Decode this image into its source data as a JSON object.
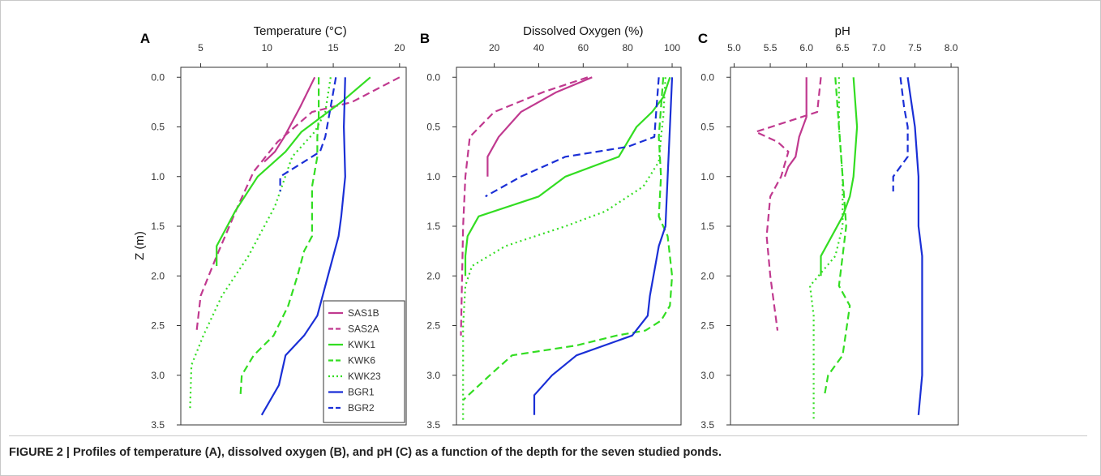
{
  "caption": "FIGURE 2 | Profiles of temperature (A), dissolved oxygen (B), and pH (C) as a function of the depth for the seven studied ponds.",
  "ylabel": "Z (m)",
  "legend": {
    "placement": "bottom-right of panel A",
    "entries": [
      {
        "name": "SAS1B",
        "color": "#c0398f",
        "dash": "solid"
      },
      {
        "name": "SAS2A",
        "color": "#c0398f",
        "dash": "dashed"
      },
      {
        "name": "KWK1",
        "color": "#33dd22",
        "dash": "solid"
      },
      {
        "name": "KWK6",
        "color": "#33dd22",
        "dash": "dashed"
      },
      {
        "name": "KWK23",
        "color": "#33dd22",
        "dash": "dotted"
      },
      {
        "name": "BGR1",
        "color": "#1a2fd6",
        "dash": "solid"
      },
      {
        "name": "BGR2",
        "color": "#1a2fd6",
        "dash": "dashed"
      }
    ]
  },
  "chart_data": [
    {
      "type": "line",
      "panel": "A",
      "xlabel": "Temperature (°C)",
      "xlim": [
        3.5,
        20.5
      ],
      "xticks": [
        5,
        10,
        15,
        20
      ],
      "ylim": [
        3.5,
        -0.1
      ],
      "yticks": [
        0.0,
        0.5,
        1.0,
        1.5,
        2.0,
        2.5,
        3.0,
        3.5
      ],
      "series": [
        {
          "name": "SAS1B",
          "x": [
            13.6,
            12.5,
            11.3,
            10.6,
            9.8
          ],
          "y": [
            0.0,
            0.3,
            0.6,
            0.75,
            0.85
          ]
        },
        {
          "name": "SAS2A",
          "x": [
            20.0,
            16.4,
            13.4,
            10.8,
            9.0,
            7.8,
            6.2,
            5.0,
            4.7
          ],
          "y": [
            0.0,
            0.25,
            0.35,
            0.65,
            0.95,
            1.3,
            1.8,
            2.2,
            2.55
          ]
        },
        {
          "name": "KWK1",
          "x": [
            17.8,
            15.6,
            12.6,
            11.4,
            9.3,
            7.6,
            6.2,
            6.2
          ],
          "y": [
            0.0,
            0.25,
            0.55,
            0.75,
            1.0,
            1.35,
            1.7,
            1.9
          ]
        },
        {
          "name": "KWK6",
          "x": [
            13.9,
            13.9,
            13.8,
            13.8,
            13.4,
            13.4,
            12.8,
            12.3,
            11.6,
            10.5,
            9.0,
            8.1,
            8.0
          ],
          "y": [
            0.0,
            0.4,
            0.6,
            0.8,
            1.1,
            1.6,
            1.75,
            2.0,
            2.3,
            2.6,
            2.8,
            3.0,
            3.2
          ]
        },
        {
          "name": "KWK23",
          "x": [
            14.8,
            14.4,
            13.6,
            11.9,
            10.6,
            8.6,
            6.6,
            5.2,
            4.3,
            4.2
          ],
          "y": [
            0.0,
            0.35,
            0.55,
            0.8,
            1.3,
            1.8,
            2.2,
            2.6,
            2.9,
            3.35
          ]
        },
        {
          "name": "BGR1",
          "x": [
            15.9,
            15.8,
            15.9,
            15.6,
            15.4,
            14.6,
            13.8,
            12.8,
            11.4,
            10.9,
            9.6
          ],
          "y": [
            0.0,
            0.5,
            1.0,
            1.4,
            1.6,
            2.0,
            2.4,
            2.6,
            2.8,
            3.1,
            3.4
          ]
        },
        {
          "name": "BGR2",
          "x": [
            15.2,
            14.8,
            14.4,
            14.0,
            12.8,
            11.6,
            11.0,
            11.0
          ],
          "y": [
            0.0,
            0.3,
            0.6,
            0.75,
            0.85,
            0.95,
            1.0,
            1.15
          ]
        }
      ]
    },
    {
      "type": "line",
      "panel": "B",
      "xlabel": "Dissolved Oxygen (%)",
      "xlim": [
        3,
        104
      ],
      "xticks": [
        20,
        40,
        60,
        80,
        100
      ],
      "ylim": [
        3.5,
        -0.1
      ],
      "yticks": [
        0.0,
        0.5,
        1.0,
        1.5,
        2.0,
        2.5,
        3.0,
        3.5
      ],
      "series": [
        {
          "name": "SAS1B",
          "x": [
            64,
            48,
            32,
            22,
            17,
            17
          ],
          "y": [
            0.0,
            0.15,
            0.35,
            0.6,
            0.8,
            1.0
          ]
        },
        {
          "name": "SAS2A",
          "x": [
            62,
            42,
            20,
            9,
            7,
            6,
            5
          ],
          "y": [
            0.0,
            0.15,
            0.35,
            0.6,
            1.0,
            1.5,
            2.6
          ]
        },
        {
          "name": "KWK1",
          "x": [
            99,
            96,
            91,
            84,
            76,
            52,
            40,
            13,
            8,
            7,
            7
          ],
          "y": [
            0.0,
            0.2,
            0.35,
            0.5,
            0.8,
            1.0,
            1.2,
            1.4,
            1.6,
            1.8,
            2.0
          ]
        },
        {
          "name": "KWK6",
          "x": [
            96,
            95,
            94,
            95,
            94,
            98,
            100,
            99,
            95,
            88,
            75,
            57,
            28,
            18,
            6
          ],
          "y": [
            0.0,
            0.3,
            0.6,
            1.0,
            1.4,
            1.6,
            2.0,
            2.3,
            2.45,
            2.55,
            2.6,
            2.7,
            2.8,
            3.0,
            3.25
          ]
        },
        {
          "name": "KWK23",
          "x": [
            97,
            96,
            95,
            94,
            87,
            70,
            52,
            25,
            10,
            7,
            6,
            6
          ],
          "y": [
            0.0,
            0.4,
            0.6,
            0.85,
            1.1,
            1.35,
            1.5,
            1.7,
            1.9,
            2.1,
            2.5,
            3.45
          ]
        },
        {
          "name": "BGR1",
          "x": [
            100,
            99,
            98,
            97,
            94,
            90,
            89,
            82,
            57,
            46,
            38,
            38
          ],
          "y": [
            0.0,
            0.5,
            1.0,
            1.5,
            1.7,
            2.2,
            2.4,
            2.6,
            2.8,
            3.0,
            3.2,
            3.4
          ]
        },
        {
          "name": "BGR2",
          "x": [
            94,
            93,
            92,
            86,
            80,
            52,
            32,
            16
          ],
          "y": [
            0.0,
            0.3,
            0.6,
            0.65,
            0.7,
            0.8,
            1.0,
            1.2
          ]
        }
      ]
    },
    {
      "type": "line",
      "panel": "C",
      "xlabel": "pH",
      "xlim": [
        4.95,
        8.1
      ],
      "xticks": [
        5.0,
        5.5,
        6.0,
        6.5,
        7.0,
        7.5,
        8.0
      ],
      "xticklabels": [
        "5.0",
        "5.5",
        "6.0",
        "6.5",
        "7.0",
        "7.5",
        "8.0"
      ],
      "ylim": [
        3.5,
        -0.1
      ],
      "yticks": [
        0.0,
        0.5,
        1.0,
        1.5,
        2.0,
        2.5,
        3.0,
        3.5
      ],
      "series": [
        {
          "name": "SAS1B",
          "x": [
            6.0,
            6.0,
            5.9,
            5.85,
            5.75,
            5.7
          ],
          "y": [
            0.0,
            0.4,
            0.6,
            0.8,
            0.9,
            1.0
          ]
        },
        {
          "name": "SAS2A",
          "x": [
            6.2,
            6.15,
            5.3,
            5.6,
            5.75,
            5.65,
            5.5,
            5.45,
            5.5,
            5.6
          ],
          "y": [
            0.0,
            0.35,
            0.55,
            0.65,
            0.75,
            1.0,
            1.2,
            1.6,
            2.0,
            2.55
          ]
        },
        {
          "name": "KWK1",
          "x": [
            6.65,
            6.7,
            6.65,
            6.6,
            6.5,
            6.35,
            6.2,
            6.2
          ],
          "y": [
            0.0,
            0.5,
            1.0,
            1.2,
            1.4,
            1.6,
            1.8,
            2.0
          ]
        },
        {
          "name": "KWK6",
          "x": [
            6.4,
            6.45,
            6.5,
            6.55,
            6.5,
            6.45,
            6.6,
            6.5,
            6.3,
            6.25
          ],
          "y": [
            0.0,
            0.5,
            1.0,
            1.5,
            1.8,
            2.1,
            2.3,
            2.8,
            3.0,
            3.2
          ]
        },
        {
          "name": "KWK23",
          "x": [
            6.45,
            6.45,
            6.5,
            6.5,
            6.4,
            6.05,
            6.1,
            6.1,
            6.1
          ],
          "y": [
            0.0,
            0.5,
            1.0,
            1.5,
            1.8,
            2.1,
            2.4,
            2.8,
            3.45
          ]
        },
        {
          "name": "BGR1",
          "x": [
            7.4,
            7.5,
            7.55,
            7.55,
            7.6,
            7.6,
            7.6,
            7.55
          ],
          "y": [
            0.0,
            0.5,
            1.0,
            1.5,
            1.8,
            2.2,
            3.0,
            3.4
          ]
        },
        {
          "name": "BGR2",
          "x": [
            7.3,
            7.35,
            7.4,
            7.4,
            7.3,
            7.2,
            7.2
          ],
          "y": [
            0.0,
            0.3,
            0.5,
            0.8,
            0.9,
            1.0,
            1.15
          ]
        }
      ]
    }
  ]
}
